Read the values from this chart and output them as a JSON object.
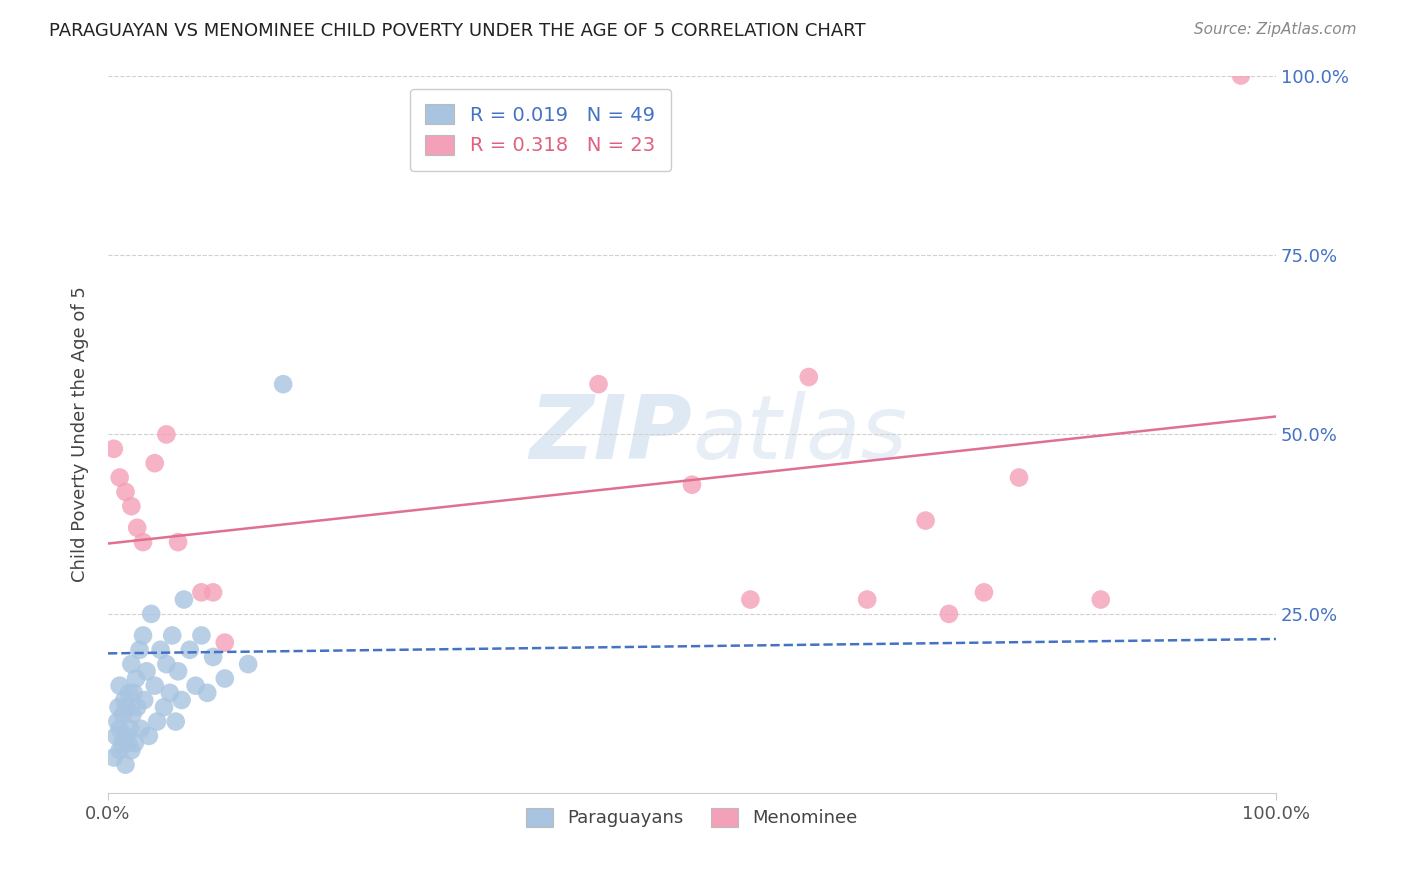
{
  "title": "PARAGUAYAN VS MENOMINEE CHILD POVERTY UNDER THE AGE OF 5 CORRELATION CHART",
  "source": "Source: ZipAtlas.com",
  "ylabel": "Child Poverty Under the Age of 5",
  "watermark": "ZIPatlas",
  "legend_paraguayan": "Paraguayans",
  "legend_menominee": "Menominee",
  "r_paraguayan": 0.019,
  "n_paraguayan": 49,
  "r_menominee": 0.318,
  "n_menominee": 23,
  "paraguayan_color": "#a8c4e0",
  "menominee_color": "#f4a0b8",
  "trendline_paraguayan_color": "#4472c4",
  "trendline_menominee_color": "#e07090",
  "xlim": [
    0,
    1.0
  ],
  "ylim": [
    0,
    1.0
  ],
  "paraguayan_x": [
    0.005,
    0.007,
    0.008,
    0.009,
    0.01,
    0.01,
    0.01,
    0.012,
    0.013,
    0.014,
    0.015,
    0.015,
    0.016,
    0.017,
    0.018,
    0.019,
    0.02,
    0.02,
    0.021,
    0.022,
    0.023,
    0.024,
    0.025,
    0.027,
    0.028,
    0.03,
    0.031,
    0.033,
    0.035,
    0.037,
    0.04,
    0.042,
    0.045,
    0.048,
    0.05,
    0.053,
    0.055,
    0.058,
    0.06,
    0.063,
    0.065,
    0.07,
    0.075,
    0.08,
    0.085,
    0.09,
    0.1,
    0.12,
    0.15
  ],
  "paraguayan_y": [
    0.05,
    0.08,
    0.1,
    0.12,
    0.06,
    0.09,
    0.15,
    0.07,
    0.11,
    0.13,
    0.04,
    0.08,
    0.12,
    0.07,
    0.14,
    0.09,
    0.06,
    0.18,
    0.11,
    0.14,
    0.07,
    0.16,
    0.12,
    0.2,
    0.09,
    0.22,
    0.13,
    0.17,
    0.08,
    0.25,
    0.15,
    0.1,
    0.2,
    0.12,
    0.18,
    0.14,
    0.22,
    0.1,
    0.17,
    0.13,
    0.27,
    0.2,
    0.15,
    0.22,
    0.14,
    0.19,
    0.16,
    0.18,
    0.57
  ],
  "menominee_x": [
    0.005,
    0.01,
    0.015,
    0.02,
    0.025,
    0.03,
    0.04,
    0.05,
    0.06,
    0.08,
    0.09,
    0.1,
    0.42,
    0.5,
    0.55,
    0.6,
    0.65,
    0.7,
    0.72,
    0.75,
    0.78,
    0.85,
    0.97
  ],
  "menominee_y": [
    0.48,
    0.44,
    0.42,
    0.4,
    0.37,
    0.35,
    0.46,
    0.5,
    0.35,
    0.28,
    0.28,
    0.21,
    0.57,
    0.43,
    0.27,
    0.58,
    0.27,
    0.38,
    0.25,
    0.28,
    0.44,
    0.27,
    1.0
  ],
  "trendline_p_x0": 0.0,
  "trendline_p_x1": 1.0,
  "trendline_p_y0": 0.195,
  "trendline_p_y1": 0.215,
  "trendline_m_x0": 0.0,
  "trendline_m_x1": 1.0,
  "trendline_m_y0": 0.348,
  "trendline_m_y1": 0.525
}
